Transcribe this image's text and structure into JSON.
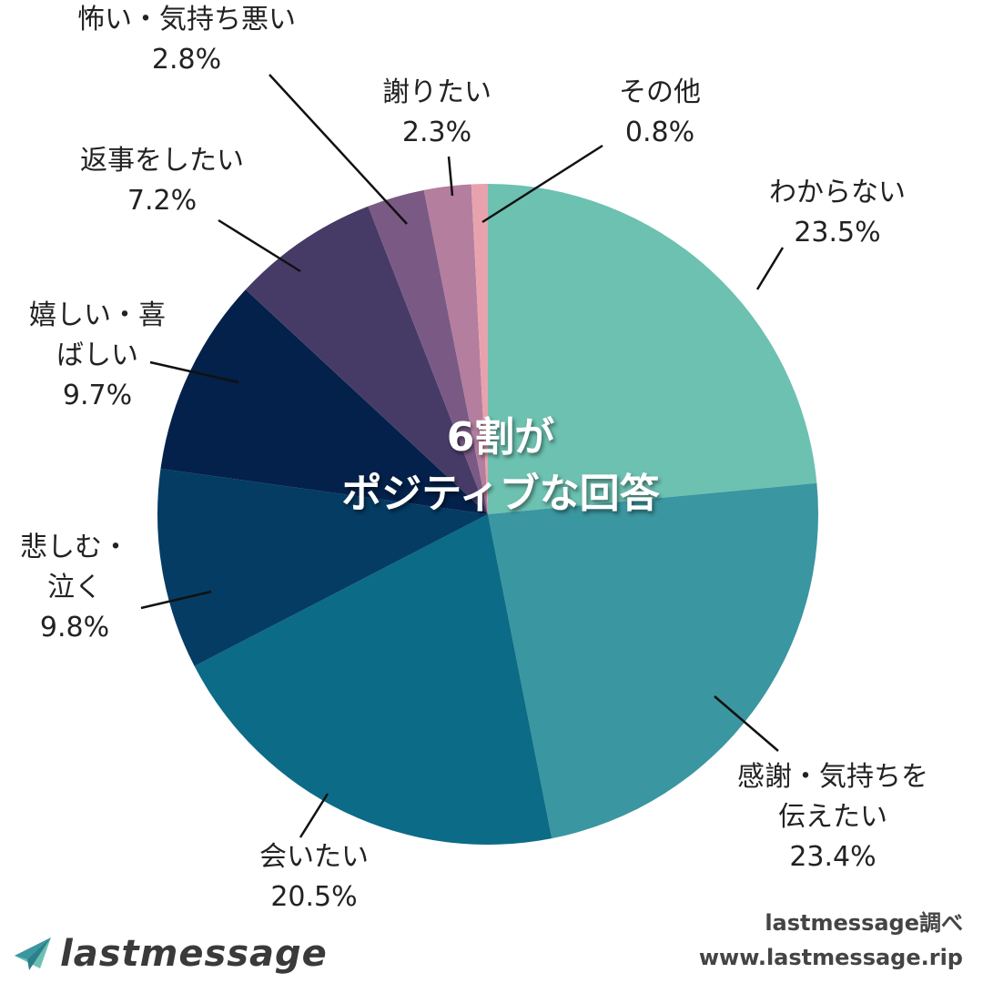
{
  "chart_data": {
    "type": "pie",
    "center_label": [
      "6割が",
      "ポジティブな回答"
    ],
    "slices": [
      {
        "label": [
          "わからない"
        ],
        "value": 23.5,
        "display": "23.5%",
        "color": "#6CC1B1"
      },
      {
        "label": [
          "感謝・気持ちを",
          "伝えたい"
        ],
        "value": 23.4,
        "display": "23.4%",
        "color": "#3A96A0"
      },
      {
        "label": [
          "会いたい"
        ],
        "value": 20.5,
        "display": "20.5%",
        "color": "#0C6B87"
      },
      {
        "label": [
          "悲しむ・",
          "泣く"
        ],
        "value": 9.8,
        "display": "9.8%",
        "color": "#043C63"
      },
      {
        "label": [
          "嬉しい・喜",
          "ばしい"
        ],
        "value": 9.7,
        "display": "9.7%",
        "color": "#03214A"
      },
      {
        "label": [
          "返事をしたい"
        ],
        "value": 7.2,
        "display": "7.2%",
        "color": "#463B67"
      },
      {
        "label": [
          "怖い・気持ち悪い"
        ],
        "value": 2.8,
        "display": "2.8%",
        "color": "#7A5A84"
      },
      {
        "label": [
          "謝りたい"
        ],
        "value": 2.3,
        "display": "2.3%",
        "color": "#B47E9E"
      },
      {
        "label": [
          "その他"
        ],
        "value": 0.8,
        "display": "0.8%",
        "color": "#E8A2AE"
      }
    ]
  },
  "footer": {
    "logo_text": "lastmessage",
    "logo_icon": "paper-plane-icon",
    "source_line1": "lastmessage調べ",
    "source_line2": "www.lastmessage.rip"
  }
}
